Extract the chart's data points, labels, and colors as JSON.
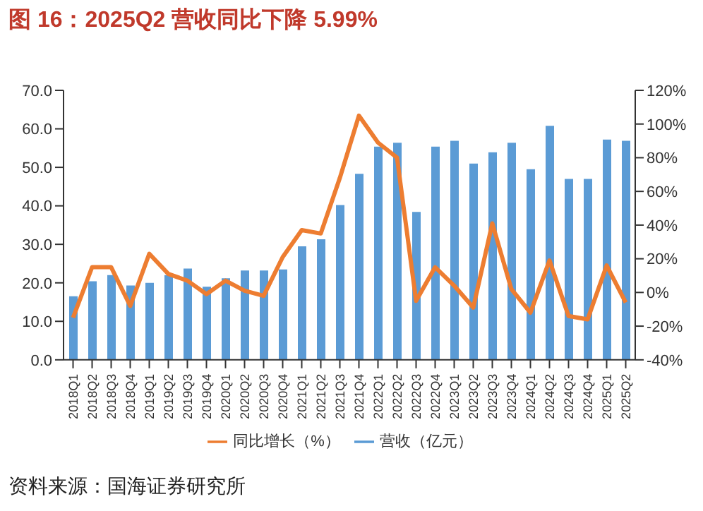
{
  "chart_data": {
    "type": "bar",
    "title": "图 16：2025Q2 营收同比下降 5.99%",
    "annotations": [
      "资料来源：国海证券研究所"
    ],
    "categories": [
      "2018Q1",
      "2018Q2",
      "2018Q3",
      "2018Q4",
      "2019Q1",
      "2019Q2",
      "2019Q3",
      "2019Q4",
      "2020Q1",
      "2020Q2",
      "2020Q3",
      "2020Q4",
      "2021Q1",
      "2021Q2",
      "2021Q3",
      "2021Q4",
      "2022Q1",
      "2022Q2",
      "2022Q3",
      "2022Q4",
      "2023Q1",
      "2023Q2",
      "2023Q3",
      "2023Q4",
      "2024Q1",
      "2024Q2",
      "2024Q3",
      "2024Q4",
      "2025Q1",
      "2025Q2"
    ],
    "series": [
      {
        "name": "营收（亿元）",
        "color": "#5b9bd5",
        "values": [
          16.5,
          20.4,
          22.0,
          19.3,
          20.0,
          22.0,
          23.7,
          19.0,
          21.2,
          23.2,
          23.2,
          23.5,
          29.5,
          31.3,
          40.2,
          48.3,
          55.4,
          56.4,
          38.4,
          55.4,
          56.9,
          51.0,
          53.9,
          56.4,
          49.5,
          60.8,
          47.0,
          47.0,
          57.2,
          56.9
        ]
      },
      {
        "name": "同比增长（%）",
        "type": "line",
        "axis": "y2",
        "color": "#ed7d31",
        "values": [
          -15,
          15,
          15,
          -8,
          23,
          11,
          7,
          -1,
          7,
          1,
          -2,
          21,
          37,
          35,
          68,
          105,
          89,
          80,
          -5,
          15,
          4,
          -9,
          41,
          2,
          -12,
          19,
          -14,
          -16,
          16,
          -6
        ]
      }
    ],
    "ylim": [
      0,
      70
    ],
    "yticks": [
      {
        "value": 0,
        "label": "0.0"
      },
      {
        "value": 10,
        "label": "10.0"
      },
      {
        "value": 20,
        "label": "20.0"
      },
      {
        "value": 30,
        "label": "30.0"
      },
      {
        "value": 40,
        "label": "40.0"
      },
      {
        "value": 50,
        "label": "50.0"
      },
      {
        "value": 60,
        "label": "60.0"
      },
      {
        "value": 70,
        "label": "70.0"
      }
    ],
    "y2lim": [
      -40,
      120
    ],
    "y2ticks": [
      {
        "value": -40,
        "label": "-40%"
      },
      {
        "value": -20,
        "label": "-20%"
      },
      {
        "value": 0,
        "label": "0%"
      },
      {
        "value": 20,
        "label": "20%"
      },
      {
        "value": 40,
        "label": "40%"
      },
      {
        "value": 60,
        "label": "60%"
      },
      {
        "value": 80,
        "label": "80%"
      },
      {
        "value": 100,
        "label": "100%"
      },
      {
        "value": 120,
        "label": "120%"
      }
    ],
    "grid": false,
    "legend": "bottom",
    "marker": "none",
    "line_style": "solid"
  }
}
